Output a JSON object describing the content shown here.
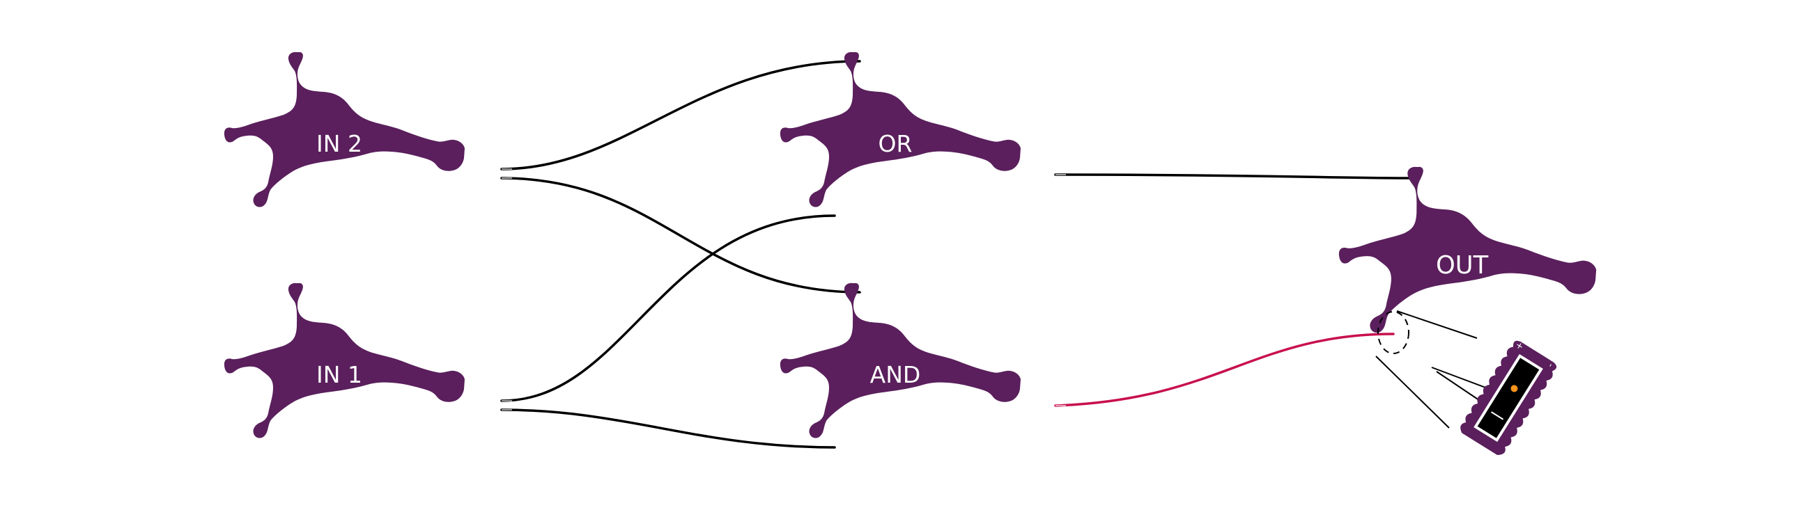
{
  "colors": {
    "node": "#5a1f5c",
    "wire": "#000000",
    "wire_active": "#c8104e",
    "background": "#ffffff",
    "led": "#f7941d"
  },
  "nodes": [
    {
      "id": "in2",
      "label": "IN 2"
    },
    {
      "id": "in1",
      "label": "IN 1"
    },
    {
      "id": "or",
      "label": "OR"
    },
    {
      "id": "and",
      "label": "AND"
    },
    {
      "id": "out",
      "label": "OUT"
    }
  ],
  "connections": [
    {
      "from": "IN 2",
      "to": "OR"
    },
    {
      "from": "IN 2",
      "to": "AND"
    },
    {
      "from": "IN 1",
      "to": "OR"
    },
    {
      "from": "IN 1",
      "to": "AND"
    },
    {
      "from": "OR",
      "to": "OUT"
    },
    {
      "from": "AND",
      "to": "OUT",
      "highlighted": true
    }
  ],
  "detail_inset": {
    "subject": "led-board",
    "polarity_marks": [
      "+",
      "-"
    ]
  }
}
